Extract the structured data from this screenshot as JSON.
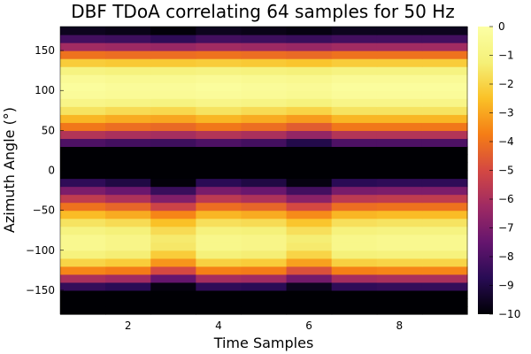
{
  "chart_data": {
    "type": "heatmap",
    "title": "DBF TDoA correlating 64 samples for 50 Hz",
    "xlabel": "Time Samples",
    "ylabel": "Azimuth Angle (°)",
    "xlim": [
      0.5,
      9.5
    ],
    "ylim": [
      -180,
      180
    ],
    "x_ticks": [
      2,
      4,
      6,
      8
    ],
    "y_ticks": [
      -150,
      -100,
      -50,
      0,
      50,
      100,
      150
    ],
    "colorbar": {
      "min": -10,
      "max": 0,
      "ticks": [
        0,
        -1,
        -2,
        -3,
        -4,
        -5,
        -6,
        -7,
        -8,
        -9,
        -10
      ],
      "colormap": "inferno"
    },
    "time_samples": [
      1,
      2,
      3,
      4,
      5,
      6,
      7,
      8,
      9
    ],
    "rows": [
      {
        "angle_range": [
          -180,
          -180
        ],
        "values": [
          -10,
          -10,
          -10,
          -10,
          -10,
          -10,
          -10,
          -10,
          -10
        ]
      },
      {
        "angle_range": [
          -180,
          -170
        ],
        "values": [
          -10,
          -10,
          -10,
          -10,
          -10,
          -10,
          -10,
          -10,
          -10
        ]
      },
      {
        "angle_range": [
          -170,
          -160
        ],
        "values": [
          -10,
          -10,
          -10,
          -10,
          -10,
          -10,
          -10,
          -10,
          -10
        ]
      },
      {
        "angle_range": [
          -160,
          -150
        ],
        "values": [
          -10,
          -10,
          -10,
          -10,
          -10,
          -10,
          -10,
          -10,
          -10
        ]
      },
      {
        "angle_range": [
          -150,
          -140
        ],
        "values": [
          -8.5,
          -8.7,
          -9.8,
          -8.6,
          -8.7,
          -9.6,
          -8.6,
          -8.5,
          -8.5
        ]
      },
      {
        "angle_range": [
          -140,
          -130
        ],
        "values": [
          -6,
          -6.2,
          -7.5,
          -6.1,
          -6.2,
          -7.2,
          -6.1,
          -6,
          -6
        ]
      },
      {
        "angle_range": [
          -130,
          -120
        ],
        "values": [
          -3.6,
          -3.8,
          -5,
          -3.7,
          -3.8,
          -4.8,
          -3.7,
          -3.6,
          -3.6
        ]
      },
      {
        "angle_range": [
          -120,
          -110
        ],
        "values": [
          -2,
          -2.2,
          -3.3,
          -2.1,
          -2.2,
          -3.1,
          -2.1,
          -2,
          -2
        ]
      },
      {
        "angle_range": [
          -110,
          -100
        ],
        "values": [
          -1.1,
          -1.3,
          -2.2,
          -1.2,
          -1.3,
          -2,
          -1.2,
          -1.1,
          -1.1
        ]
      },
      {
        "angle_range": [
          -100,
          -90
        ],
        "values": [
          -0.6,
          -0.8,
          -1.5,
          -0.7,
          -0.8,
          -1.4,
          -0.7,
          -0.6,
          -0.6
        ]
      },
      {
        "angle_range": [
          -90,
          -80
        ],
        "values": [
          -0.6,
          -0.8,
          -1.4,
          -0.7,
          -0.8,
          -1.3,
          -0.7,
          -0.6,
          -0.6
        ]
      },
      {
        "angle_range": [
          -80,
          -70
        ],
        "values": [
          -1,
          -1.2,
          -1.8,
          -1.1,
          -1.2,
          -1.7,
          -1.1,
          -1,
          -1
        ]
      },
      {
        "angle_range": [
          -70,
          -60
        ],
        "values": [
          -1.6,
          -1.8,
          -2.5,
          -1.7,
          -1.8,
          -2.4,
          -1.7,
          -1.6,
          -1.6
        ]
      },
      {
        "angle_range": [
          -60,
          -50
        ],
        "values": [
          -2.6,
          -2.9,
          -3.6,
          -2.7,
          -2.9,
          -3.5,
          -2.7,
          -2.6,
          -2.6
        ]
      },
      {
        "angle_range": [
          -50,
          -40
        ],
        "values": [
          -4,
          -4.3,
          -5.2,
          -4.1,
          -4.3,
          -5,
          -4.1,
          -4,
          -4
        ]
      },
      {
        "angle_range": [
          -40,
          -30
        ],
        "values": [
          -5.5,
          -5.9,
          -6.9,
          -5.6,
          -5.9,
          -6.7,
          -5.6,
          -5.5,
          -5.5
        ]
      },
      {
        "angle_range": [
          -30,
          -20
        ],
        "values": [
          -7,
          -7.4,
          -8.4,
          -7.1,
          -7.4,
          -8.2,
          -7.1,
          -7,
          -7
        ]
      },
      {
        "angle_range": [
          -20,
          -10
        ],
        "values": [
          -8.6,
          -9,
          -9.9,
          -8.7,
          -9,
          -9.8,
          -8.7,
          -8.6,
          -8.6
        ]
      },
      {
        "angle_range": [
          -10,
          0
        ],
        "values": [
          -10,
          -10,
          -10,
          -10,
          -10,
          -10,
          -10,
          -10,
          -10
        ]
      },
      {
        "angle_range": [
          0,
          10
        ],
        "values": [
          -10,
          -10,
          -10,
          -10,
          -10,
          -10,
          -10,
          -10,
          -10
        ]
      },
      {
        "angle_range": [
          10,
          20
        ],
        "values": [
          -10,
          -10,
          -10,
          -10,
          -10,
          -10,
          -10,
          -10,
          -10
        ]
      },
      {
        "angle_range": [
          20,
          30
        ],
        "values": [
          -10,
          -10,
          -10,
          -10,
          -10,
          -10.0,
          -10,
          -10,
          -10
        ]
      },
      {
        "angle_range": [
          30,
          40
        ],
        "values": [
          -8,
          -8.2,
          -8.3,
          -8,
          -8.2,
          -8.9,
          -8,
          -8,
          -8
        ]
      },
      {
        "angle_range": [
          40,
          50
        ],
        "values": [
          -5.8,
          -6,
          -6.1,
          -5.8,
          -6,
          -6.5,
          -5.8,
          -5.8,
          -5.8
        ]
      },
      {
        "angle_range": [
          50,
          60
        ],
        "values": [
          -3.9,
          -4.1,
          -4.2,
          -3.9,
          -4.1,
          -4.5,
          -3.9,
          -3.9,
          -3.9
        ]
      },
      {
        "angle_range": [
          60,
          70
        ],
        "values": [
          -2.7,
          -2.9,
          -3,
          -2.7,
          -2.9,
          -3.2,
          -2.7,
          -2.7,
          -2.7
        ]
      },
      {
        "angle_range": [
          70,
          80
        ],
        "values": [
          -1.6,
          -1.8,
          -1.9,
          -1.6,
          -1.8,
          -2,
          -1.6,
          -1.6,
          -1.6
        ]
      },
      {
        "angle_range": [
          80,
          90
        ],
        "values": [
          -0.8,
          -0.9,
          -1,
          -0.8,
          -0.9,
          -1.1,
          -0.8,
          -0.8,
          -0.8
        ]
      },
      {
        "angle_range": [
          90,
          100
        ],
        "values": [
          -0.3,
          -0.4,
          -0.4,
          -0.3,
          -0.4,
          -0.5,
          -0.3,
          -0.3,
          -0.3
        ]
      },
      {
        "angle_range": [
          100,
          110
        ],
        "values": [
          -0.2,
          -0.3,
          -0.3,
          -0.2,
          -0.3,
          -0.4,
          -0.2,
          -0.2,
          -0.2
        ]
      },
      {
        "angle_range": [
          110,
          120
        ],
        "values": [
          -0.4,
          -0.5,
          -0.5,
          -0.4,
          -0.5,
          -0.6,
          -0.4,
          -0.4,
          -0.4
        ]
      },
      {
        "angle_range": [
          120,
          130
        ],
        "values": [
          -1,
          -1.1,
          -1.1,
          -1,
          -1.1,
          -1.2,
          -1,
          -1,
          -1
        ]
      },
      {
        "angle_range": [
          130,
          140
        ],
        "values": [
          -2.2,
          -2.3,
          -2.3,
          -2.2,
          -2.3,
          -2.4,
          -2.2,
          -2.2,
          -2.2
        ]
      },
      {
        "angle_range": [
          140,
          150
        ],
        "values": [
          -4,
          -4.1,
          -4.1,
          -4,
          -4.1,
          -4.2,
          -4,
          -4,
          -4
        ]
      },
      {
        "angle_range": [
          150,
          160
        ],
        "values": [
          -6.2,
          -6.3,
          -6.4,
          -6.2,
          -6.3,
          -6.4,
          -6.2,
          -6.2,
          -6.2
        ]
      },
      {
        "angle_range": [
          160,
          170
        ],
        "values": [
          -8.2,
          -8.3,
          -8.6,
          -8.2,
          -8.3,
          -8.4,
          -8.2,
          -8.2,
          -8.2
        ]
      },
      {
        "angle_range": [
          170,
          180
        ],
        "values": [
          -9.6,
          -9.7,
          -9.9,
          -9.6,
          -9.7,
          -9.8,
          -9.6,
          -9.6,
          -9.6
        ]
      }
    ]
  }
}
